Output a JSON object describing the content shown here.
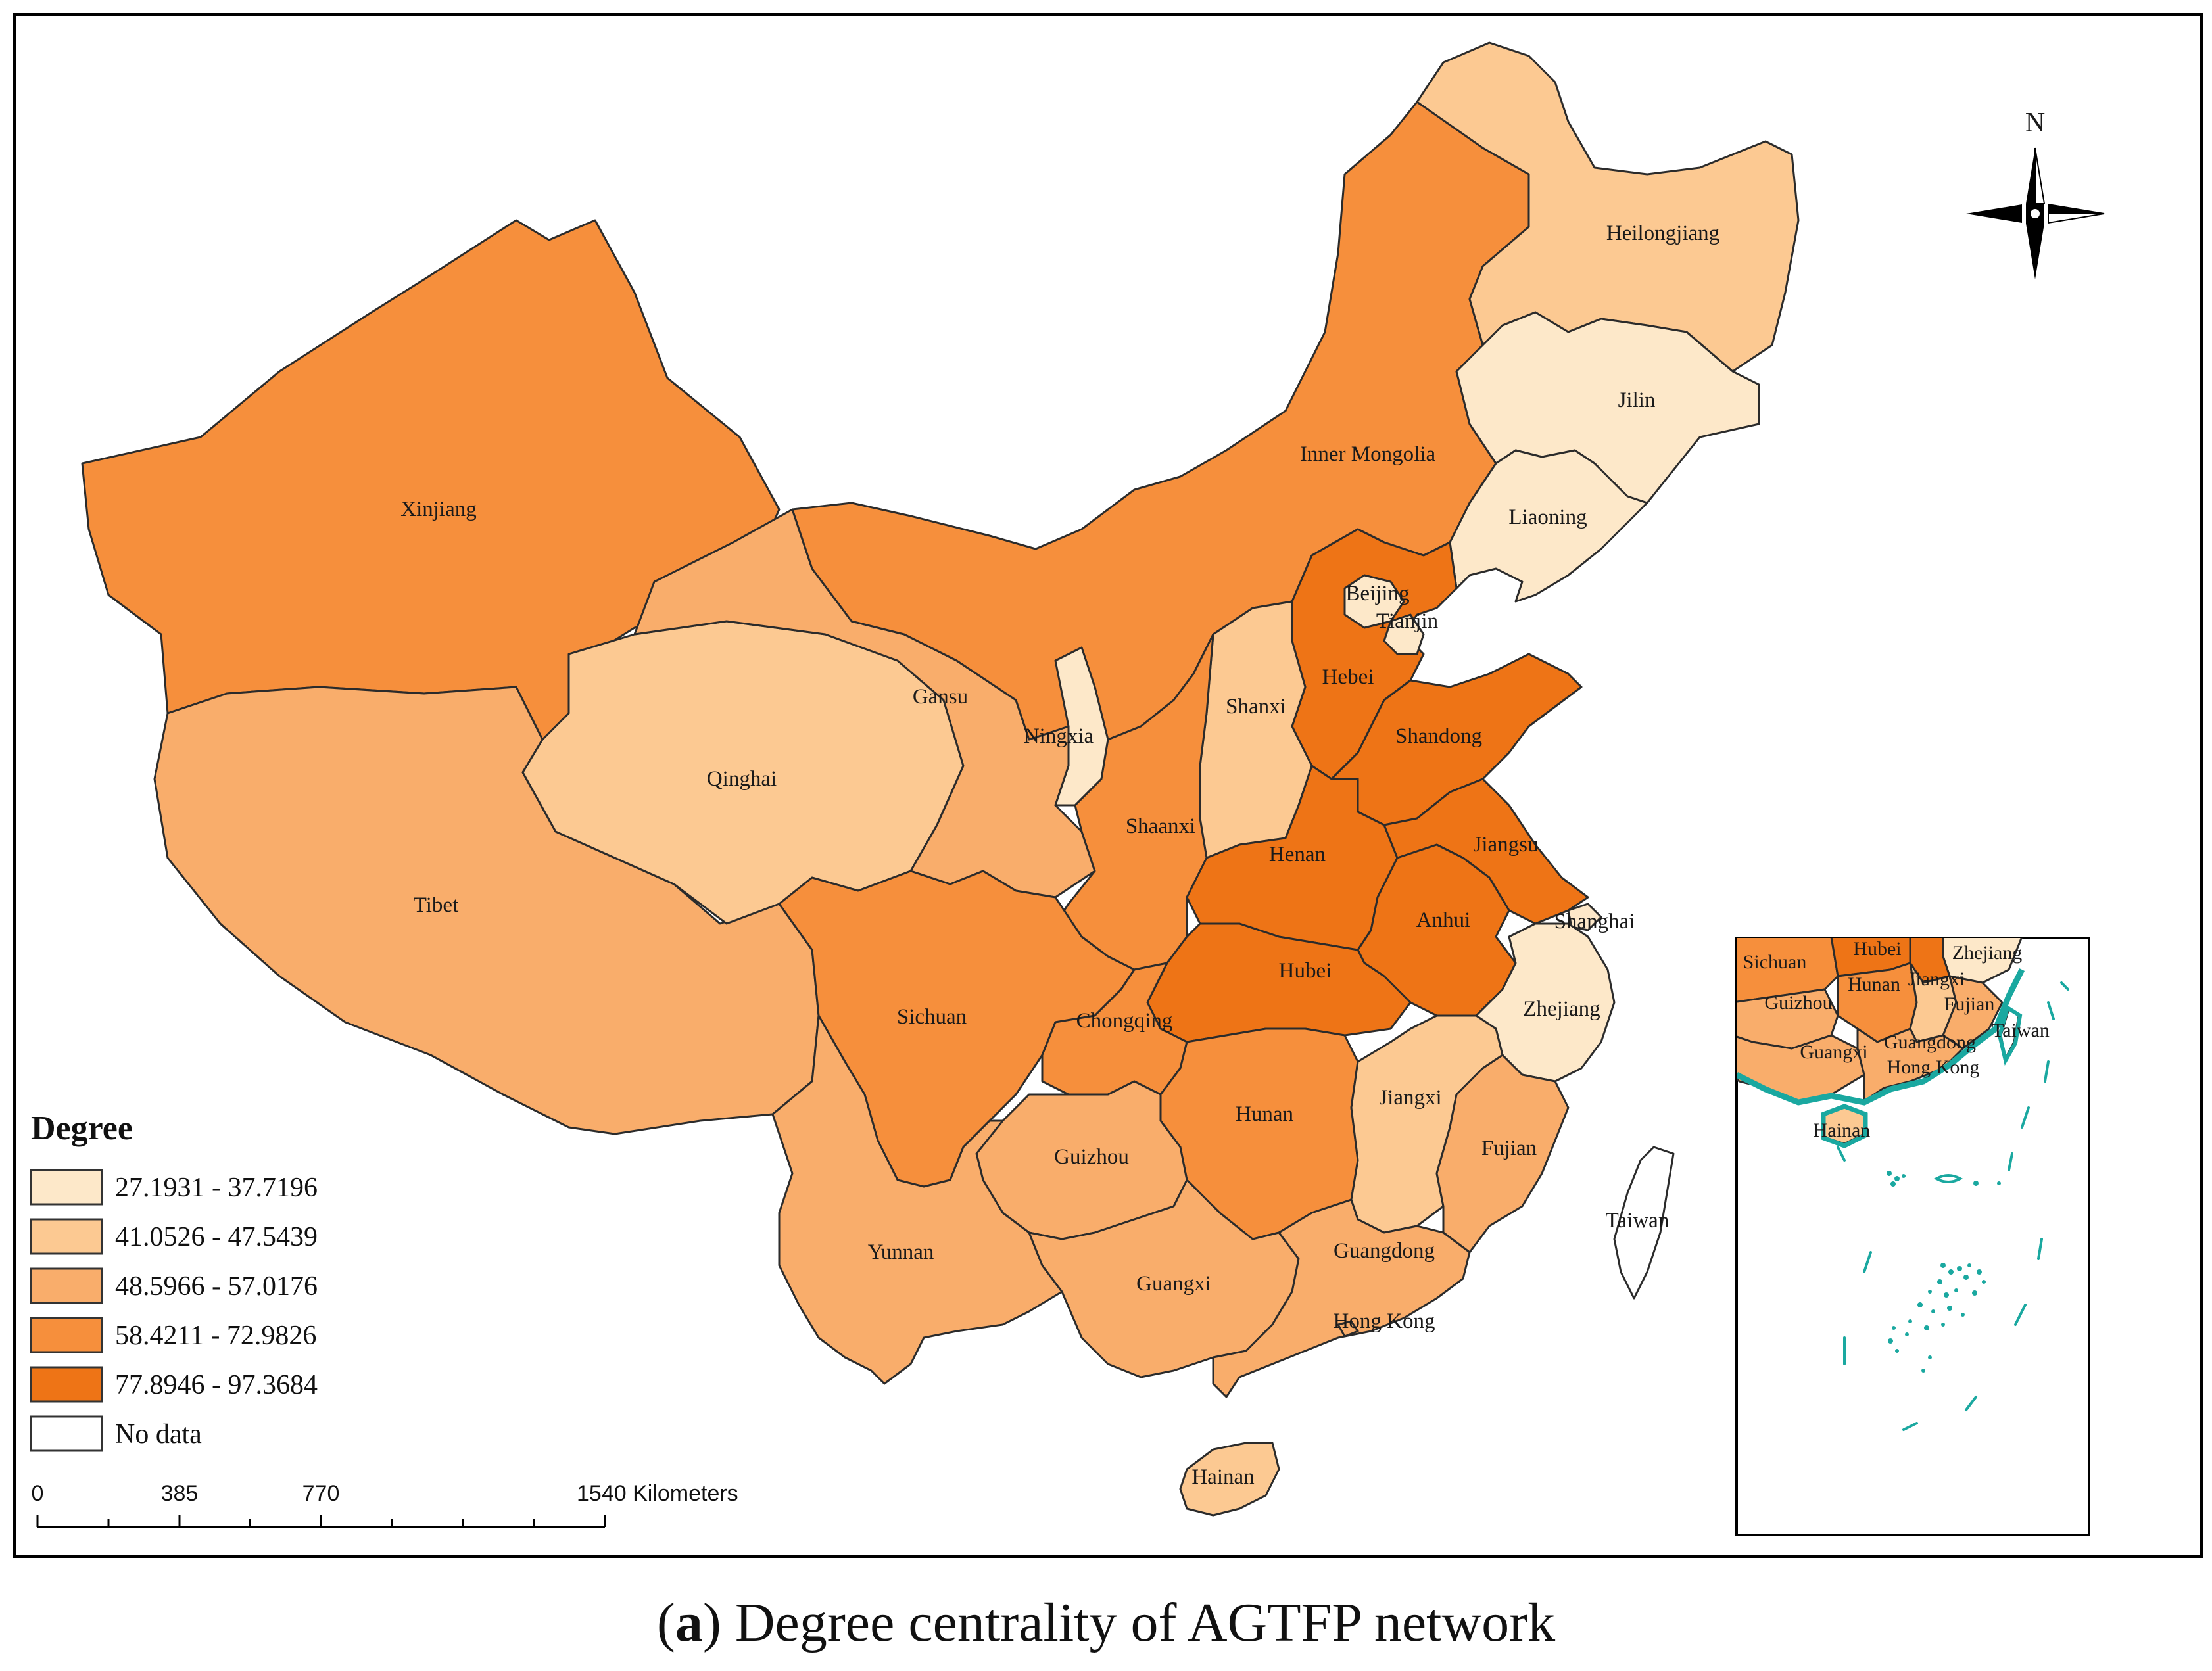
{
  "legend": {
    "title": "Degree",
    "classes": [
      {
        "label": "27.1931 - 37.7196",
        "color": "#fde8c9"
      },
      {
        "label": "41.0526 - 47.5439",
        "color": "#fcc992"
      },
      {
        "label": "48.5966 - 57.0176",
        "color": "#f9ad6b"
      },
      {
        "label": "58.4211 - 72.9826",
        "color": "#f68f3c"
      },
      {
        "label": "77.8946 - 97.3684",
        "color": "#ee7416"
      }
    ],
    "nodata": {
      "label": "No data",
      "color": "#ffffff"
    }
  },
  "scalebar": {
    "ticks": [
      "0",
      "385",
      "770",
      "1540 Kilometers"
    ]
  },
  "north_arrow": {
    "label": "N"
  },
  "provinces": [
    {
      "name": "Xinjiang",
      "class": 3
    },
    {
      "name": "Tibet",
      "class": 2
    },
    {
      "name": "Qinghai",
      "class": 1
    },
    {
      "name": "Gansu",
      "class": 2
    },
    {
      "name": "Inner Mongolia",
      "class": 3
    },
    {
      "name": "Heilongjiang",
      "class": 1
    },
    {
      "name": "Jilin",
      "class": 0
    },
    {
      "name": "Liaoning",
      "class": 0
    },
    {
      "name": "Beijing",
      "class": 0
    },
    {
      "name": "Tianjin",
      "class": 0
    },
    {
      "name": "Hebei",
      "class": 4
    },
    {
      "name": "Shanxi",
      "class": 1
    },
    {
      "name": "Shandong",
      "class": 4
    },
    {
      "name": "Ningxia",
      "class": 0
    },
    {
      "name": "Shaanxi",
      "class": 3
    },
    {
      "name": "Henan",
      "class": 4
    },
    {
      "name": "Jiangsu",
      "class": 4
    },
    {
      "name": "Anhui",
      "class": 4
    },
    {
      "name": "Shanghai",
      "class": 0
    },
    {
      "name": "Hubei",
      "class": 4
    },
    {
      "name": "Sichuan",
      "class": 3
    },
    {
      "name": "Chongqing",
      "class": 3
    },
    {
      "name": "Zhejiang",
      "class": 0
    },
    {
      "name": "Hunan",
      "class": 3
    },
    {
      "name": "Jiangxi",
      "class": 1
    },
    {
      "name": "Guizhou",
      "class": 2
    },
    {
      "name": "Fujian",
      "class": 2
    },
    {
      "name": "Yunnan",
      "class": 2
    },
    {
      "name": "Guangxi",
      "class": 2
    },
    {
      "name": "Guangdong",
      "class": 2
    },
    {
      "name": "Hong Kong",
      "class": 2
    },
    {
      "name": "Hainan",
      "class": 1
    },
    {
      "name": "Taiwan",
      "class": 5
    }
  ],
  "inset_labels": [
    "Sichuan",
    "Hubei",
    "Zhejiang",
    "Hunan",
    "Jiangxi",
    "Guizhou",
    "Fujian",
    "Taiwan",
    "Guangxi",
    "Guangdong",
    "Hong Kong",
    "Hainan"
  ],
  "caption": {
    "panel": "a",
    "text": "Degree centrality of AGTFP network"
  }
}
